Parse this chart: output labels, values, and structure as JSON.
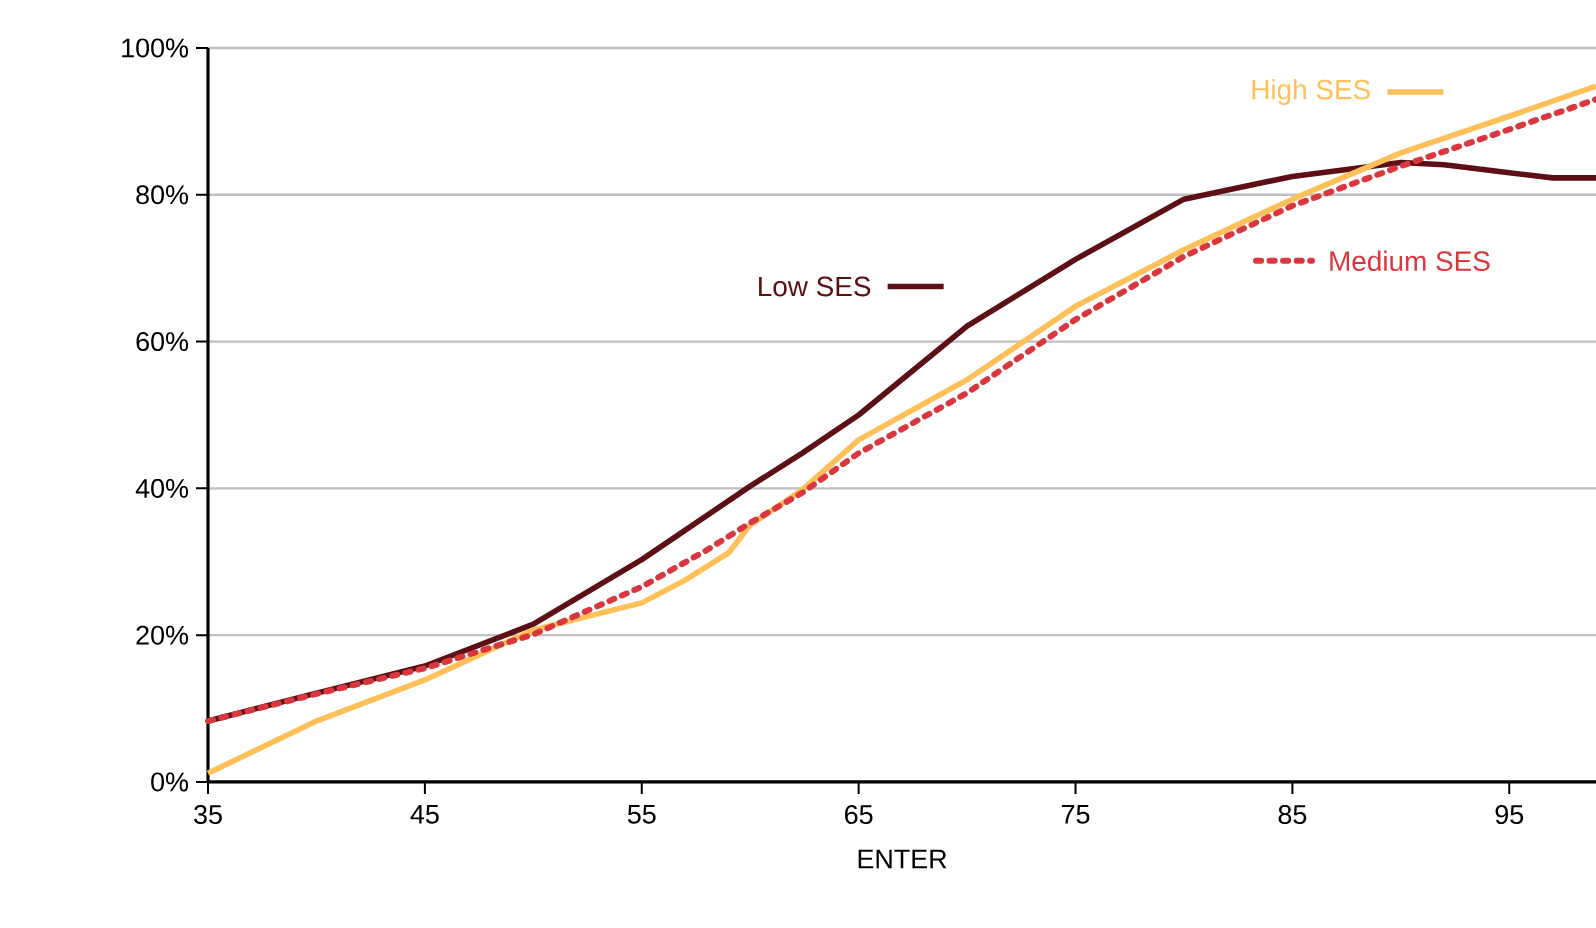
{
  "chart_data": {
    "type": "line",
    "xlabel": "ENTER",
    "xlim": [
      35,
      99
    ],
    "xticks": [
      35,
      45,
      55,
      65,
      75,
      85,
      95
    ],
    "ylim": [
      0,
      100
    ],
    "yticks": [
      {
        "value": 0,
        "label": "0%"
      },
      {
        "value": 20,
        "label": "20%"
      },
      {
        "value": 40,
        "label": "40%"
      },
      {
        "value": 60,
        "label": "60%"
      },
      {
        "value": 80,
        "label": "80%"
      },
      {
        "value": 100,
        "label": "100%"
      }
    ],
    "grid": "y",
    "legend": "top right",
    "series": [
      {
        "name": "Low SES",
        "color": "#5c1016",
        "line_style": "solid",
        "x": [
          35,
          40,
          45,
          50,
          55,
          60,
          62.4,
          65,
          70,
          75,
          80,
          85,
          90,
          92,
          95,
          97,
          99
        ],
        "values": [
          8.3,
          12.1,
          15.8,
          21.5,
          30.3,
          40.3,
          44.8,
          50,
          62.1,
          71.2,
          79.4,
          82.5,
          84.4,
          84.1,
          83,
          82.3,
          82.3
        ]
      },
      {
        "name": "High SES",
        "color": "#ffc05a",
        "line_style": "solid",
        "x": [
          35,
          40,
          45,
          50,
          55,
          57,
          59,
          60,
          62.4,
          65,
          70,
          75,
          80,
          85,
          90,
          95,
          99
        ],
        "values": [
          1.2,
          8.3,
          13.9,
          20.7,
          24.4,
          27.5,
          31.2,
          35,
          39.8,
          46.6,
          54.8,
          64.8,
          72.5,
          79.4,
          85.7,
          90.7,
          94.8
        ]
      },
      {
        "name": "Medium SES",
        "color": "#d9363e",
        "line_style": "dotted",
        "x": [
          35,
          40,
          45,
          50,
          55,
          58,
          60,
          62.4,
          65,
          70,
          75,
          80,
          85,
          90,
          95,
          99
        ],
        "values": [
          8.3,
          12,
          15.5,
          20.1,
          26.6,
          31.6,
          35.3,
          39.4,
          44.8,
          53,
          63,
          71.6,
          78.5,
          83.9,
          88.9,
          93
        ]
      }
    ]
  }
}
